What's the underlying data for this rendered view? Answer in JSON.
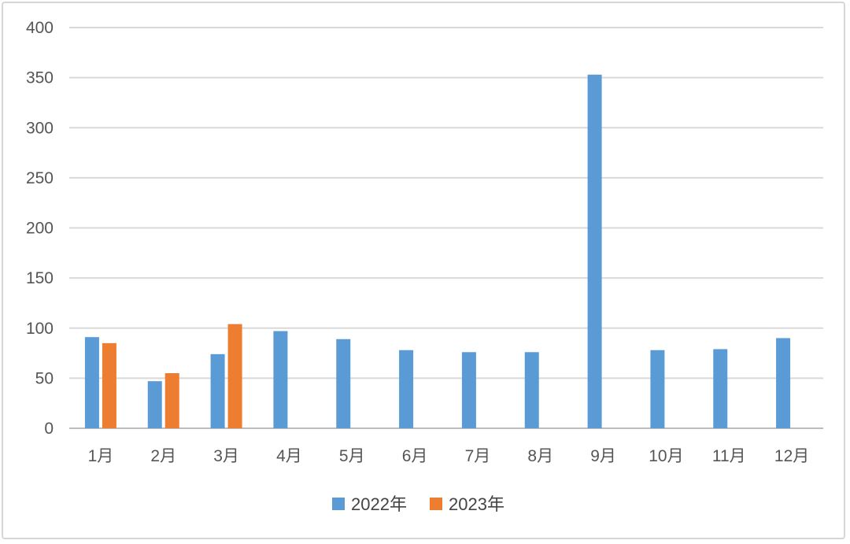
{
  "chart_data": {
    "type": "bar",
    "title": "",
    "xlabel": "",
    "ylabel": "",
    "categories": [
      "1月",
      "2月",
      "3月",
      "4月",
      "5月",
      "6月",
      "7月",
      "8月",
      "9月",
      "10月",
      "11月",
      "12月"
    ],
    "series": [
      {
        "name": "2022年",
        "color": "#5b9bd5",
        "values": [
          91,
          47,
          74,
          97,
          89,
          78,
          76,
          76,
          353,
          78,
          79,
          90
        ]
      },
      {
        "name": "2023年",
        "color": "#ed7d31",
        "values": [
          85,
          55,
          104,
          null,
          null,
          null,
          null,
          null,
          null,
          null,
          null,
          null
        ]
      }
    ],
    "ylim": [
      0,
      400
    ],
    "yticks": [
      "0",
      "50",
      "100",
      "150",
      "200",
      "250",
      "300",
      "350",
      "400"
    ],
    "grid": true,
    "legend_position": "bottom"
  }
}
